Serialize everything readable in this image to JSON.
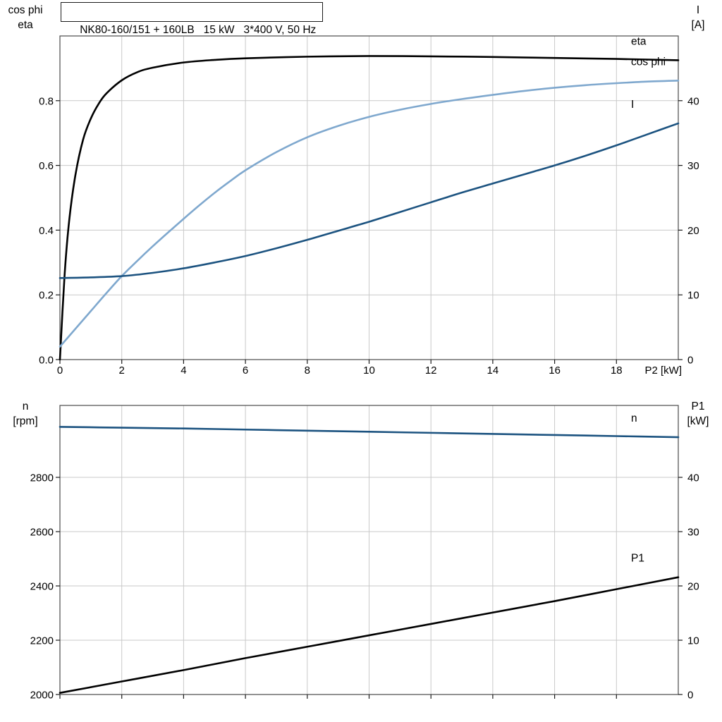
{
  "title_box": {
    "text": "NK80-160/151 + 160LB   15 kW   3*400 V, 50 Hz"
  },
  "colors": {
    "black": "#000000",
    "light_blue": "#7FA8CE",
    "dark_blue": "#1C5380",
    "grid": "#c9c9c9",
    "frame": "#4a4a4a",
    "tick": "#1a1a1a"
  },
  "chart_data": [
    {
      "type": "line",
      "title": "NK80-160/151 + 160LB   15 kW   3*400 V, 50 Hz",
      "x_axis": {
        "label": "P2 [kW]",
        "range": [
          0,
          20
        ],
        "ticks": [
          0,
          2,
          4,
          6,
          8,
          10,
          12,
          14,
          16,
          18
        ],
        "show_tick_labels": true
      },
      "left_axis": {
        "header": [
          "cos phi",
          "eta"
        ],
        "range": [
          0,
          1.0
        ],
        "ticks": [
          0,
          0.2,
          0.4,
          0.6,
          0.8
        ],
        "decimals": 1
      },
      "right_axis": {
        "header": [
          "I",
          "[A]"
        ],
        "range": [
          0,
          50
        ],
        "ticks": [
          0,
          10,
          20,
          30,
          40
        ],
        "decimals": 0
      },
      "grid": true,
      "legend_position": "inside-right",
      "series": [
        {
          "name": "eta",
          "axis": "left",
          "color": "#000000",
          "x": [
            0,
            0.15,
            0.3,
            0.5,
            0.75,
            1.0,
            1.25,
            1.5,
            2,
            2.5,
            3,
            4,
            5,
            6,
            8,
            10,
            12,
            14,
            16,
            18,
            20
          ],
          "y": [
            0.0,
            0.26,
            0.43,
            0.57,
            0.68,
            0.745,
            0.79,
            0.822,
            0.863,
            0.888,
            0.902,
            0.918,
            0.926,
            0.931,
            0.936,
            0.938,
            0.937,
            0.935,
            0.932,
            0.929,
            0.925
          ]
        },
        {
          "name": "cos phi",
          "axis": "left",
          "color": "#7FA8CE",
          "x": [
            0,
            0.5,
            1,
            1.5,
            2,
            2.5,
            3,
            3.5,
            4,
            4.5,
            5,
            5.5,
            6,
            7,
            8,
            9,
            10,
            11,
            12,
            13,
            14,
            15,
            16,
            17,
            18,
            19,
            20
          ],
          "y": [
            0.04,
            0.095,
            0.15,
            0.205,
            0.258,
            0.305,
            0.35,
            0.393,
            0.435,
            0.476,
            0.515,
            0.551,
            0.585,
            0.641,
            0.687,
            0.722,
            0.75,
            0.772,
            0.79,
            0.805,
            0.818,
            0.83,
            0.84,
            0.848,
            0.854,
            0.859,
            0.862
          ]
        },
        {
          "name": "I",
          "axis": "right",
          "color": "#1C5380",
          "x": [
            0,
            1,
            2,
            3,
            4,
            5,
            6,
            7,
            8,
            9,
            10,
            11,
            12,
            13,
            14,
            15,
            16,
            17,
            18,
            19,
            20
          ],
          "y": [
            12.6,
            12.7,
            12.9,
            13.4,
            14.1,
            15.0,
            16.0,
            17.2,
            18.5,
            19.9,
            21.3,
            22.8,
            24.3,
            25.8,
            27.2,
            28.6,
            30.0,
            31.5,
            33.1,
            34.8,
            36.5
          ]
        }
      ]
    },
    {
      "type": "line",
      "title": "",
      "x_axis": {
        "label": "",
        "range": [
          0,
          20
        ],
        "ticks": [
          0,
          2,
          4,
          6,
          8,
          10,
          12,
          14,
          16,
          18
        ],
        "show_tick_labels": false
      },
      "left_axis": {
        "header": [
          "n",
          "[rpm]"
        ],
        "range": [
          2000,
          3065
        ],
        "ticks": [
          2000,
          2200,
          2400,
          2600,
          2800
        ],
        "decimals": 0
      },
      "right_axis": {
        "header": [
          "P1",
          "[kW]"
        ],
        "range": [
          0,
          53.25
        ],
        "ticks": [
          0,
          10,
          20,
          30,
          40
        ],
        "decimals": 0
      },
      "grid": true,
      "legend_position": "inside-right",
      "series": [
        {
          "name": "n",
          "axis": "left",
          "color": "#1C5380",
          "x": [
            0,
            2,
            4,
            6,
            8,
            10,
            12,
            14,
            16,
            18,
            20
          ],
          "y": [
            2986,
            2983,
            2980,
            2976,
            2972,
            2968,
            2964,
            2960,
            2956,
            2952,
            2948
          ]
        },
        {
          "name": "P1",
          "axis": "right",
          "color": "#000000",
          "x": [
            0,
            2,
            4,
            6,
            8,
            10,
            12,
            14,
            16,
            18,
            20
          ],
          "y": [
            0.3,
            2.4,
            4.5,
            6.7,
            8.8,
            10.9,
            13.0,
            15.1,
            17.2,
            19.4,
            21.6
          ]
        }
      ]
    }
  ]
}
